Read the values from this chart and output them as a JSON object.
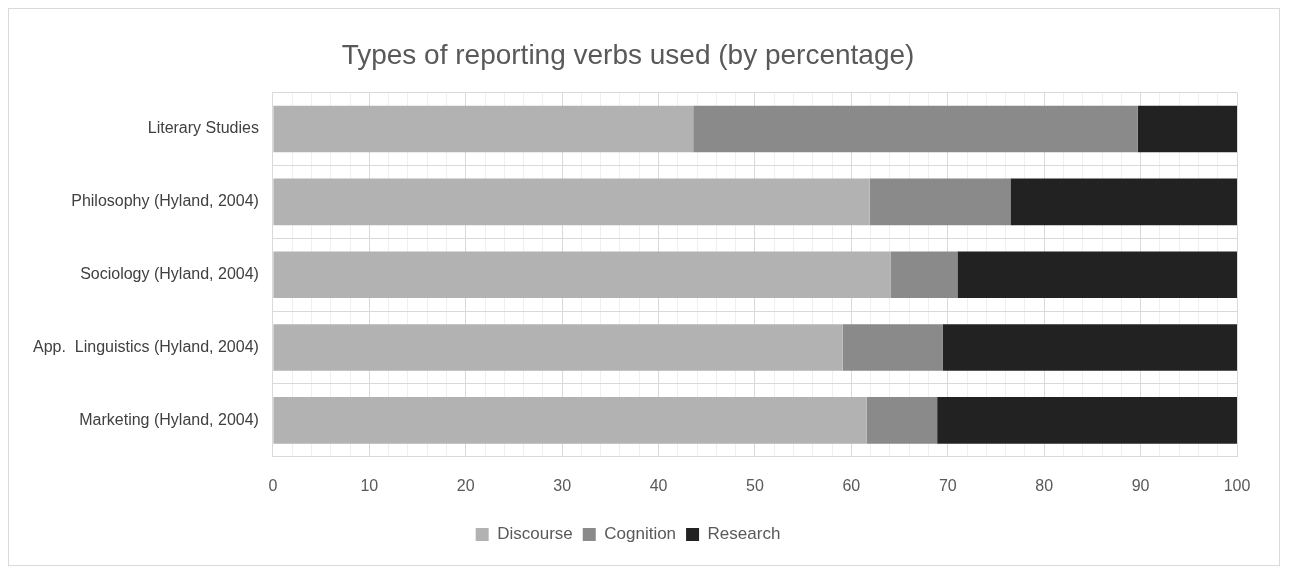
{
  "chart_data": {
    "type": "bar",
    "orientation": "horizontal",
    "stacked": true,
    "title": "Types of reporting verbs used (by percentage)",
    "categories": [
      "Literary Studies",
      "Philosophy (Hyland, 2004)",
      "Sociology (Hyland, 2004)",
      "App.  Linguistics (Hyland, 2004)",
      "Marketing (Hyland, 2004)"
    ],
    "series": [
      {
        "name": "Discourse",
        "color": "#b2b2b2",
        "values": [
          43.6,
          61.9,
          64.1,
          59.1,
          61.6
        ]
      },
      {
        "name": "Cognition",
        "color": "#8a8a8a",
        "values": [
          46.1,
          14.6,
          6.9,
          10.4,
          7.3
        ]
      },
      {
        "name": "Research",
        "color": "#222222",
        "values": [
          10.3,
          23.5,
          29.0,
          30.5,
          31.1
        ]
      }
    ],
    "xlim": [
      0,
      100
    ],
    "xticks": [
      0,
      {
        "value": 2,
        "label": null
      },
      {
        "value": 4,
        "label": null
      },
      {
        "value": 6,
        "label": null
      },
      {
        "value": 8,
        "label": null
      },
      10,
      {
        "value": 12,
        "label": null
      },
      {
        "value": 14,
        "label": null
      },
      {
        "value": 16,
        "label": null
      },
      {
        "value": 18,
        "label": null
      },
      20,
      {
        "value": 22,
        "label": null
      },
      {
        "value": 24,
        "label": null
      },
      {
        "value": 26,
        "label": null
      },
      {
        "value": 28,
        "label": null
      },
      30,
      {
        "value": 32,
        "label": null
      },
      {
        "value": 34,
        "label": null
      },
      {
        "value": 36,
        "label": null
      },
      {
        "value": 38,
        "label": null
      },
      40,
      {
        "value": 42,
        "label": null
      },
      {
        "value": 44,
        "label": null
      },
      {
        "value": 46,
        "label": null
      },
      {
        "value": 48,
        "label": null
      },
      50,
      {
        "value": 52,
        "label": null
      },
      {
        "value": 54,
        "label": null
      },
      {
        "value": 56,
        "label": null
      },
      {
        "value": 58,
        "label": null
      },
      60,
      {
        "value": 62,
        "label": null
      },
      {
        "value": 64,
        "label": null
      },
      {
        "value": 66,
        "label": null
      },
      {
        "value": 68,
        "label": null
      },
      70,
      {
        "value": 72,
        "label": null
      },
      {
        "value": 74,
        "label": null
      },
      {
        "value": 76,
        "label": null
      },
      {
        "value": 78,
        "label": null
      },
      80,
      {
        "value": 82,
        "label": null
      },
      {
        "value": 84,
        "label": null
      },
      {
        "value": 86,
        "label": null
      },
      {
        "value": 88,
        "label": null
      },
      90,
      {
        "value": 92,
        "label": null
      },
      {
        "value": 94,
        "label": null
      },
      {
        "value": 96,
        "label": null
      },
      {
        "value": 98,
        "label": null
      },
      100
    ],
    "grid": true,
    "legend": "bottom"
  }
}
